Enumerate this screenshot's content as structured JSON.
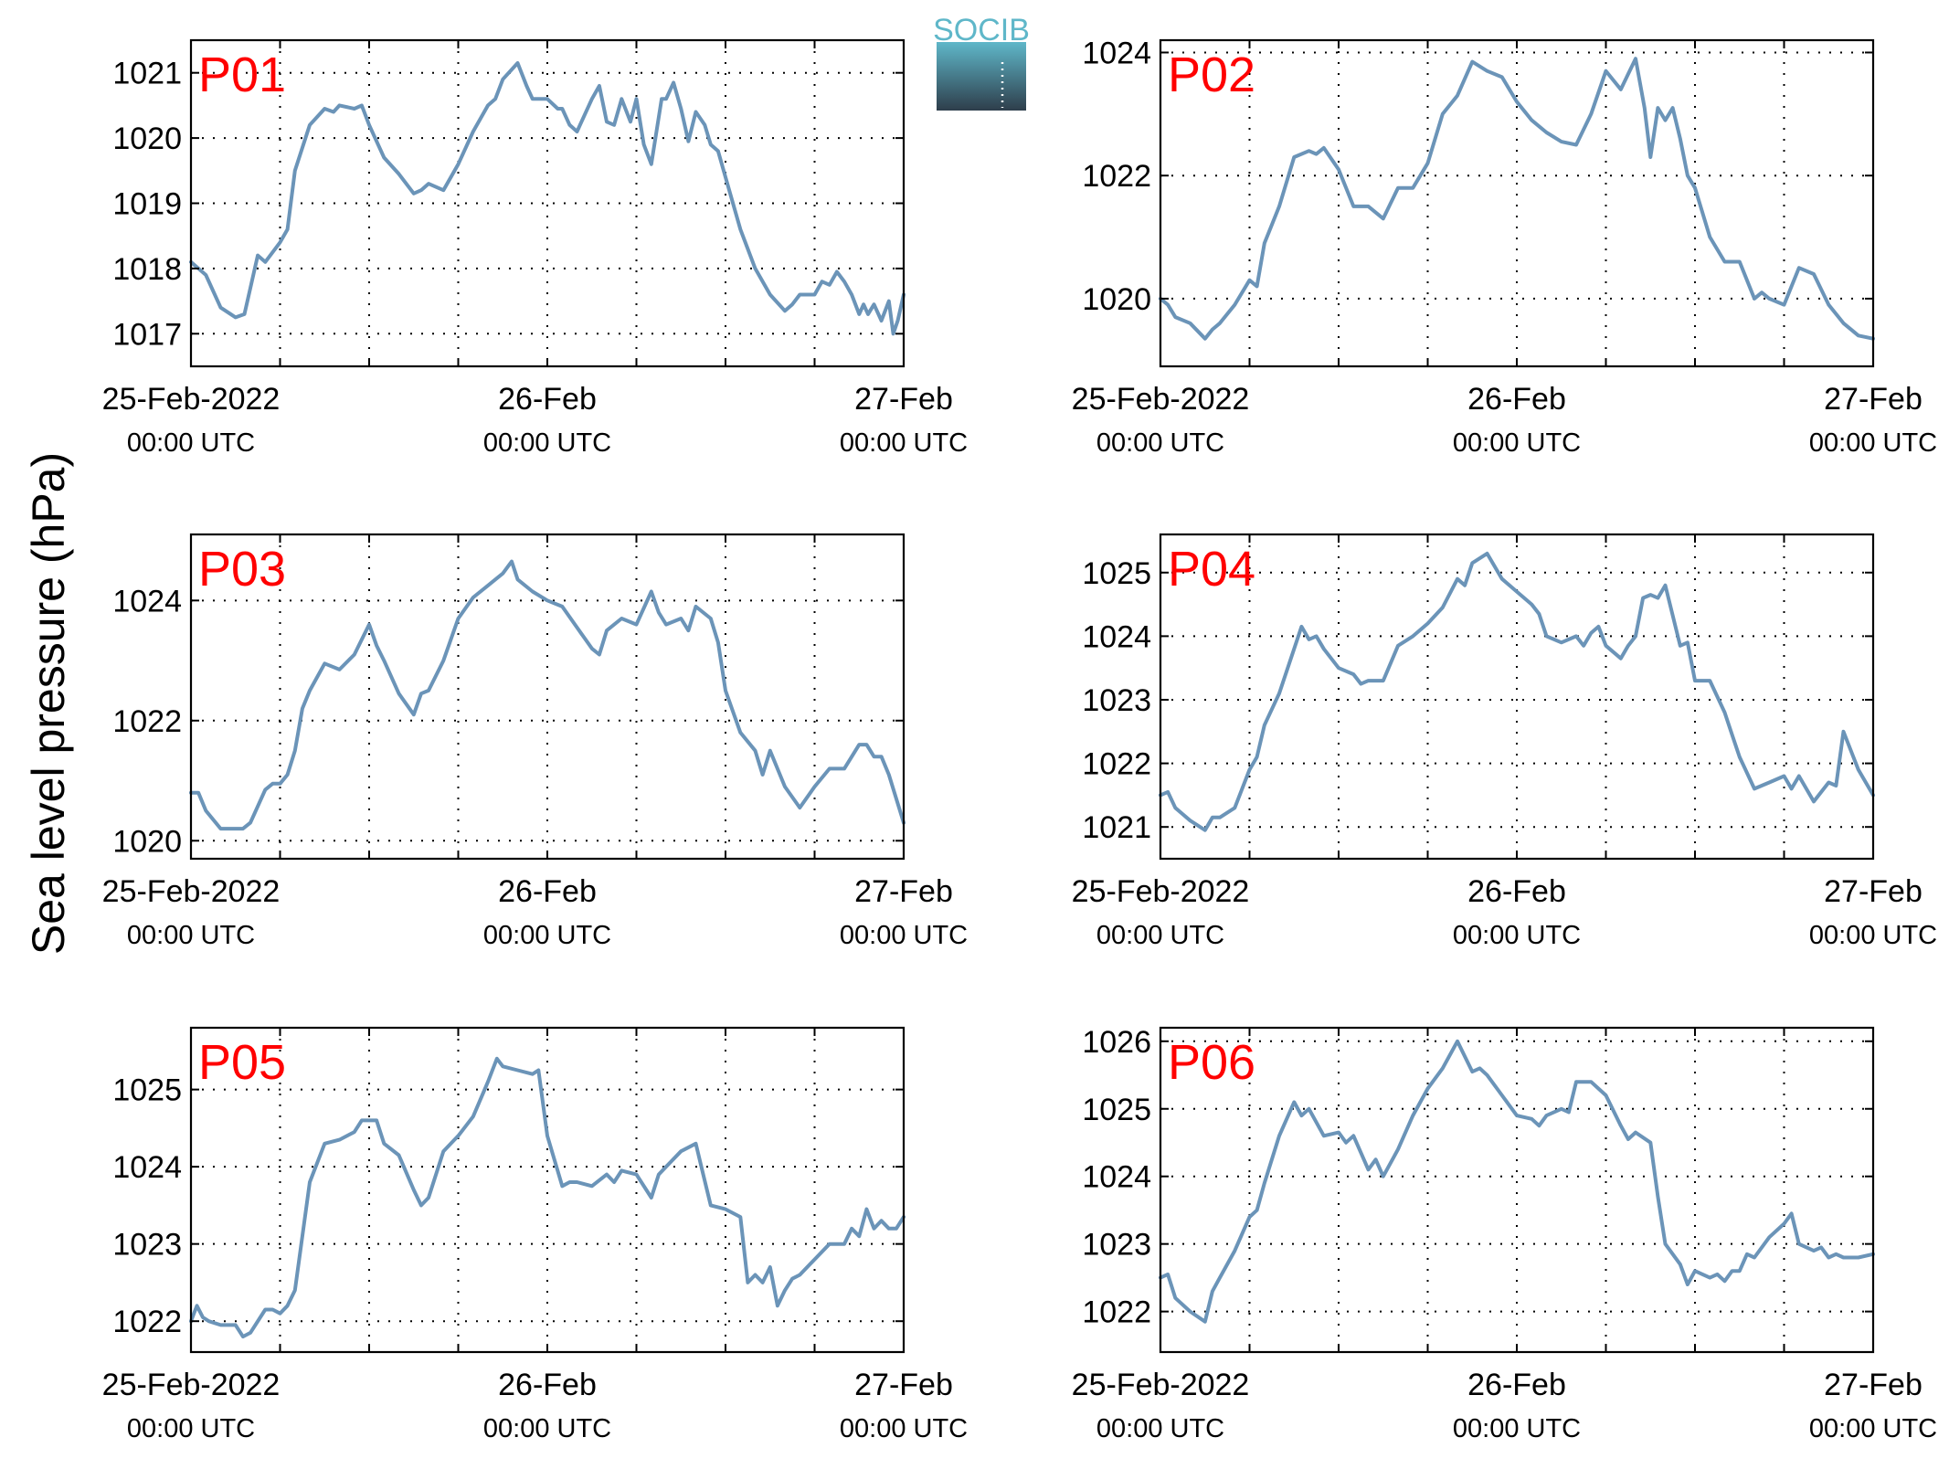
{
  "figure": {
    "ylabel": "Sea level pressure (hPa)",
    "logo_text": "SOCIB"
  },
  "colors": {
    "series": "#6b94b8",
    "panel_label": "#ff0000",
    "logo_top": "#5fb7c9",
    "logo_bottom": "#2e3e4b"
  },
  "chart_data": [
    {
      "type": "line",
      "name": "P01",
      "xlim": [
        0,
        48
      ],
      "ylim": [
        1016.5,
        1021.5
      ],
      "yticks": [
        1017,
        1018,
        1019,
        1020,
        1021
      ],
      "xticks": [
        {
          "x": 0,
          "l1": "25-Feb-2022",
          "l2": "00:00 UTC"
        },
        {
          "x": 24,
          "l1": "26-Feb",
          "l2": "00:00 UTC"
        },
        {
          "x": 48,
          "l1": "27-Feb",
          "l2": "00:00 UTC"
        }
      ],
      "grid_x": [
        6,
        12,
        18,
        24,
        30,
        36,
        42
      ],
      "grid": true,
      "x": [
        0,
        1,
        2,
        3,
        3.6,
        4,
        4.5,
        5,
        5.5,
        6,
        6.5,
        7,
        8,
        9,
        9.6,
        10,
        11,
        11.5,
        12,
        13,
        14,
        15,
        15.5,
        16,
        17,
        18,
        19,
        20,
        20.5,
        21,
        22,
        22.6,
        23,
        24,
        24.7,
        25,
        25.5,
        26,
        27,
        27.5,
        28,
        28.5,
        29,
        29.6,
        30,
        30.5,
        31,
        31.7,
        32,
        32.5,
        33,
        33.5,
        34,
        34.6,
        35,
        35.5,
        36,
        37,
        37.5,
        38,
        39,
        40,
        40.5,
        41,
        42,
        42.5,
        43,
        43.5,
        44,
        44.5,
        45,
        45.3,
        45.6,
        46,
        46.5,
        47,
        47.3,
        47.6,
        48
      ],
      "values": [
        1018.1,
        1017.9,
        1017.4,
        1017.25,
        1017.3,
        1017.7,
        1018.2,
        1018.1,
        1018.25,
        1018.4,
        1018.6,
        1019.5,
        1020.2,
        1020.45,
        1020.4,
        1020.5,
        1020.45,
        1020.5,
        1020.2,
        1019.7,
        1019.45,
        1019.15,
        1019.2,
        1019.3,
        1019.2,
        1019.6,
        1020.1,
        1020.5,
        1020.6,
        1020.9,
        1021.15,
        1020.8,
        1020.6,
        1020.6,
        1020.45,
        1020.45,
        1020.2,
        1020.1,
        1020.6,
        1020.8,
        1020.25,
        1020.2,
        1020.6,
        1020.25,
        1020.6,
        1019.9,
        1019.6,
        1020.6,
        1020.6,
        1020.85,
        1020.45,
        1019.95,
        1020.4,
        1020.2,
        1019.9,
        1019.8,
        1019.4,
        1018.6,
        1018.3,
        1018.0,
        1017.6,
        1017.35,
        1017.45,
        1017.6,
        1017.6,
        1017.8,
        1017.75,
        1017.95,
        1017.8,
        1017.6,
        1017.3,
        1017.45,
        1017.3,
        1017.45,
        1017.2,
        1017.5,
        1017.0,
        1017.2,
        1017.6
      ]
    },
    {
      "type": "line",
      "name": "P02",
      "xlim": [
        0,
        48
      ],
      "ylim": [
        1018.9,
        1024.2
      ],
      "yticks": [
        1020,
        1022,
        1024
      ],
      "xticks": [
        {
          "x": 0,
          "l1": "25-Feb-2022",
          "l2": "00:00 UTC"
        },
        {
          "x": 24,
          "l1": "26-Feb",
          "l2": "00:00 UTC"
        },
        {
          "x": 48,
          "l1": "27-Feb",
          "l2": "00:00 UTC"
        }
      ],
      "grid_x": [
        6,
        12,
        18,
        24,
        30,
        36,
        42
      ],
      "grid": true,
      "x": [
        0,
        0.5,
        1,
        2,
        3,
        3.5,
        4,
        5,
        6,
        6.5,
        7,
        8,
        9,
        10,
        10.5,
        11,
        12,
        13,
        14,
        15,
        16,
        17,
        17.5,
        18,
        19,
        20,
        21,
        22,
        23,
        24,
        25,
        25.5,
        26,
        27,
        28,
        29,
        30,
        31,
        32,
        32.6,
        33,
        33.5,
        34,
        34.5,
        35,
        35.5,
        36,
        37,
        38,
        38.5,
        39,
        40,
        40.5,
        41,
        42,
        43,
        44,
        45,
        46,
        47,
        48
      ],
      "values": [
        1020.0,
        1019.9,
        1019.7,
        1019.6,
        1019.35,
        1019.5,
        1019.6,
        1019.9,
        1020.3,
        1020.2,
        1020.9,
        1021.5,
        1022.3,
        1022.4,
        1022.35,
        1022.45,
        1022.1,
        1021.5,
        1021.5,
        1021.3,
        1021.8,
        1021.8,
        1022.0,
        1022.2,
        1023.0,
        1023.3,
        1023.85,
        1023.7,
        1023.6,
        1023.2,
        1022.9,
        1022.8,
        1022.7,
        1022.55,
        1022.5,
        1023.0,
        1023.7,
        1023.4,
        1023.9,
        1023.1,
        1022.3,
        1023.1,
        1022.9,
        1023.1,
        1022.6,
        1022.0,
        1021.8,
        1021.0,
        1020.6,
        1020.6,
        1020.6,
        1020.0,
        1020.1,
        1020.0,
        1019.9,
        1020.5,
        1020.4,
        1019.9,
        1019.6,
        1019.4,
        1019.35
      ]
    },
    {
      "type": "line",
      "name": "P03",
      "xlim": [
        0,
        48
      ],
      "ylim": [
        1019.7,
        1025.1
      ],
      "yticks": [
        1020,
        1022,
        1024
      ],
      "xticks": [
        {
          "x": 0,
          "l1": "25-Feb-2022",
          "l2": "00:00 UTC"
        },
        {
          "x": 24,
          "l1": "26-Feb",
          "l2": "00:00 UTC"
        },
        {
          "x": 48,
          "l1": "27-Feb",
          "l2": "00:00 UTC"
        }
      ],
      "grid_x": [
        6,
        12,
        18,
        24,
        30,
        36,
        42
      ],
      "grid": true,
      "x": [
        0,
        0.5,
        1,
        2,
        3,
        3.5,
        4,
        5,
        5.5,
        6,
        6.5,
        7,
        7.5,
        8,
        9,
        10,
        11,
        12,
        12.5,
        13,
        14,
        15,
        15.5,
        16,
        17,
        18,
        19,
        20,
        21,
        21.6,
        22,
        23,
        24,
        25,
        26,
        27,
        27.5,
        28,
        29,
        30,
        31,
        31.5,
        32,
        33,
        33.5,
        34,
        35,
        35.5,
        36,
        37,
        38,
        38.5,
        39,
        40,
        41,
        42,
        43,
        44,
        45,
        45.5,
        46,
        46.5,
        47,
        48
      ],
      "values": [
        1020.8,
        1020.8,
        1020.5,
        1020.2,
        1020.2,
        1020.2,
        1020.3,
        1020.85,
        1020.95,
        1020.95,
        1021.1,
        1021.5,
        1022.2,
        1022.5,
        1022.95,
        1022.85,
        1023.1,
        1023.6,
        1023.25,
        1023.0,
        1022.45,
        1022.1,
        1022.45,
        1022.5,
        1023.0,
        1023.7,
        1024.05,
        1024.25,
        1024.45,
        1024.65,
        1024.35,
        1024.15,
        1024.0,
        1023.9,
        1023.55,
        1023.2,
        1023.1,
        1023.5,
        1023.7,
        1023.6,
        1024.15,
        1023.8,
        1023.6,
        1023.7,
        1023.5,
        1023.9,
        1023.7,
        1023.3,
        1022.5,
        1021.8,
        1021.5,
        1021.1,
        1021.5,
        1020.9,
        1020.55,
        1020.9,
        1021.2,
        1021.2,
        1021.6,
        1021.6,
        1021.4,
        1021.4,
        1021.1,
        1020.3
      ]
    },
    {
      "type": "line",
      "name": "P04",
      "xlim": [
        0,
        48
      ],
      "ylim": [
        1020.5,
        1025.6
      ],
      "yticks": [
        1021,
        1022,
        1023,
        1024,
        1025
      ],
      "xticks": [
        {
          "x": 0,
          "l1": "25-Feb-2022",
          "l2": "00:00 UTC"
        },
        {
          "x": 24,
          "l1": "26-Feb",
          "l2": "00:00 UTC"
        },
        {
          "x": 48,
          "l1": "27-Feb",
          "l2": "00:00 UTC"
        }
      ],
      "grid_x": [
        6,
        12,
        18,
        24,
        30,
        36,
        42
      ],
      "grid": true,
      "x": [
        0,
        0.5,
        1,
        2,
        3,
        3.5,
        4,
        5,
        6,
        6.5,
        7,
        8,
        9,
        9.5,
        10,
        10.5,
        11,
        12,
        13,
        13.5,
        14,
        15,
        16,
        17,
        18,
        19,
        20,
        20.5,
        21,
        22,
        23,
        24,
        25,
        25.5,
        26,
        27,
        28,
        28.5,
        29,
        29.5,
        30,
        31,
        31.5,
        32,
        32.5,
        33,
        33.5,
        34,
        35,
        35.5,
        36,
        37,
        38,
        38.5,
        39,
        40,
        41,
        42,
        42.5,
        43,
        44,
        45,
        45.5,
        46,
        47,
        48
      ],
      "values": [
        1021.5,
        1021.55,
        1021.3,
        1021.1,
        1020.95,
        1021.15,
        1021.15,
        1021.3,
        1021.9,
        1022.1,
        1022.6,
        1023.1,
        1023.8,
        1024.15,
        1023.95,
        1024.0,
        1023.8,
        1023.5,
        1023.4,
        1023.25,
        1023.3,
        1023.3,
        1023.85,
        1024.0,
        1024.2,
        1024.45,
        1024.9,
        1024.8,
        1025.15,
        1025.3,
        1024.9,
        1024.7,
        1024.5,
        1024.35,
        1024.0,
        1023.9,
        1024.0,
        1023.85,
        1024.05,
        1024.15,
        1023.85,
        1023.65,
        1023.85,
        1024.0,
        1024.6,
        1024.65,
        1024.6,
        1024.8,
        1023.85,
        1023.9,
        1023.3,
        1023.3,
        1022.8,
        1022.45,
        1022.1,
        1021.6,
        1021.7,
        1021.8,
        1021.6,
        1021.8,
        1021.4,
        1021.7,
        1021.65,
        1022.5,
        1021.9,
        1021.5
      ]
    },
    {
      "type": "line",
      "name": "P05",
      "xlim": [
        0,
        48
      ],
      "ylim": [
        1021.6,
        1025.8
      ],
      "yticks": [
        1022,
        1023,
        1024,
        1025
      ],
      "xticks": [
        {
          "x": 0,
          "l1": "25-Feb-2022",
          "l2": "00:00 UTC"
        },
        {
          "x": 24,
          "l1": "26-Feb",
          "l2": "00:00 UTC"
        },
        {
          "x": 48,
          "l1": "27-Feb",
          "l2": "00:00 UTC"
        }
      ],
      "grid_x": [
        6,
        12,
        18,
        24,
        30,
        36,
        42
      ],
      "grid": true,
      "x": [
        0,
        0.4,
        0.8,
        1.2,
        2,
        3,
        3.5,
        4,
        5,
        5.5,
        6,
        6.5,
        7,
        8,
        9,
        10,
        11,
        11.5,
        12,
        12.5,
        13,
        14,
        15,
        15.5,
        16,
        17,
        18,
        19,
        20,
        20.6,
        21,
        22,
        23,
        23.4,
        24,
        25,
        25.5,
        26,
        27,
        28,
        28.5,
        29,
        30,
        31,
        31.5,
        32,
        33,
        34,
        34.5,
        35,
        36,
        37,
        37.5,
        38,
        38.5,
        39,
        39.5,
        40,
        40.5,
        41,
        42,
        43,
        44,
        44.5,
        45,
        45.5,
        46,
        46.5,
        47,
        47.5,
        48
      ],
      "values": [
        1022.0,
        1022.2,
        1022.05,
        1022.0,
        1021.95,
        1021.95,
        1021.8,
        1021.85,
        1022.15,
        1022.15,
        1022.1,
        1022.2,
        1022.4,
        1023.8,
        1024.3,
        1024.35,
        1024.45,
        1024.6,
        1024.6,
        1024.6,
        1024.3,
        1024.15,
        1023.7,
        1023.5,
        1023.6,
        1024.2,
        1024.4,
        1024.65,
        1025.1,
        1025.4,
        1025.3,
        1025.25,
        1025.2,
        1025.25,
        1024.4,
        1023.75,
        1023.8,
        1023.8,
        1023.75,
        1023.9,
        1023.8,
        1023.95,
        1023.9,
        1023.6,
        1023.9,
        1024.0,
        1024.2,
        1024.3,
        1023.9,
        1023.5,
        1023.45,
        1023.35,
        1022.5,
        1022.6,
        1022.5,
        1022.7,
        1022.2,
        1022.4,
        1022.55,
        1022.6,
        1022.8,
        1023.0,
        1023.0,
        1023.2,
        1023.1,
        1023.45,
        1023.2,
        1023.3,
        1023.2,
        1023.2,
        1023.35
      ]
    },
    {
      "type": "line",
      "name": "P06",
      "xlim": [
        0,
        48
      ],
      "ylim": [
        1021.4,
        1026.2
      ],
      "yticks": [
        1022,
        1023,
        1024,
        1025,
        1026
      ],
      "xticks": [
        {
          "x": 0,
          "l1": "25-Feb-2022",
          "l2": "00:00 UTC"
        },
        {
          "x": 24,
          "l1": "26-Feb",
          "l2": "00:00 UTC"
        },
        {
          "x": 48,
          "l1": "27-Feb",
          "l2": "00:00 UTC"
        }
      ],
      "grid_x": [
        6,
        12,
        18,
        24,
        30,
        36,
        42
      ],
      "grid": true,
      "x": [
        0,
        0.5,
        1,
        2,
        3,
        3.5,
        4,
        5,
        6,
        6.5,
        7,
        8,
        9,
        9.5,
        10,
        11,
        12,
        12.5,
        13,
        14,
        14.5,
        15,
        16,
        17,
        18,
        19,
        20,
        21,
        21.5,
        22,
        23,
        24,
        25,
        25.5,
        26,
        27,
        27.5,
        28,
        29,
        29.5,
        30,
        31,
        31.5,
        32,
        33,
        33.5,
        34,
        35,
        35.5,
        36,
        37,
        37.5,
        38,
        38.5,
        39,
        39.5,
        40,
        41,
        42,
        42.5,
        43,
        44,
        44.5,
        45,
        45.5,
        46,
        47,
        48
      ],
      "values": [
        1022.5,
        1022.55,
        1022.2,
        1022.0,
        1021.85,
        1022.3,
        1022.5,
        1022.9,
        1023.4,
        1023.5,
        1023.9,
        1024.6,
        1025.1,
        1024.9,
        1025.0,
        1024.6,
        1024.65,
        1024.5,
        1024.6,
        1024.1,
        1024.25,
        1024.0,
        1024.4,
        1024.9,
        1025.3,
        1025.6,
        1026.0,
        1025.55,
        1025.6,
        1025.5,
        1025.2,
        1024.9,
        1024.85,
        1024.75,
        1024.9,
        1025.0,
        1024.95,
        1025.4,
        1025.4,
        1025.3,
        1025.2,
        1024.75,
        1024.55,
        1024.65,
        1024.5,
        1023.7,
        1023.0,
        1022.7,
        1022.4,
        1022.6,
        1022.5,
        1022.55,
        1022.45,
        1022.6,
        1022.6,
        1022.85,
        1022.8,
        1023.1,
        1023.3,
        1023.45,
        1023.0,
        1022.9,
        1022.95,
        1022.8,
        1022.85,
        1022.8,
        1022.8,
        1022.85
      ]
    }
  ]
}
